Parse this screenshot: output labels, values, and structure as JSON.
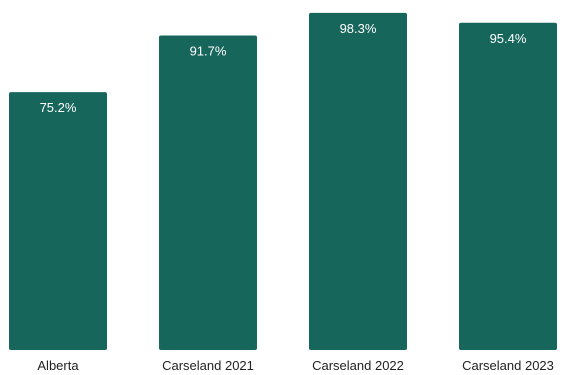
{
  "chart_data": {
    "type": "bar",
    "categories": [
      "Alberta",
      "Carseland 2021",
      "Carseland 2022",
      "Carseland 2023"
    ],
    "values": [
      75.2,
      91.7,
      98.3,
      95.4
    ],
    "value_labels": [
      "75.2%",
      "91.7%",
      "98.3%",
      "95.4%"
    ],
    "title": "",
    "xlabel": "",
    "ylabel": "",
    "ylim": [
      0,
      100
    ],
    "grid": false,
    "legend": "none",
    "colors": {
      "bar": "#17665b",
      "label": "#ffffff",
      "axis_text": "#222222"
    }
  }
}
